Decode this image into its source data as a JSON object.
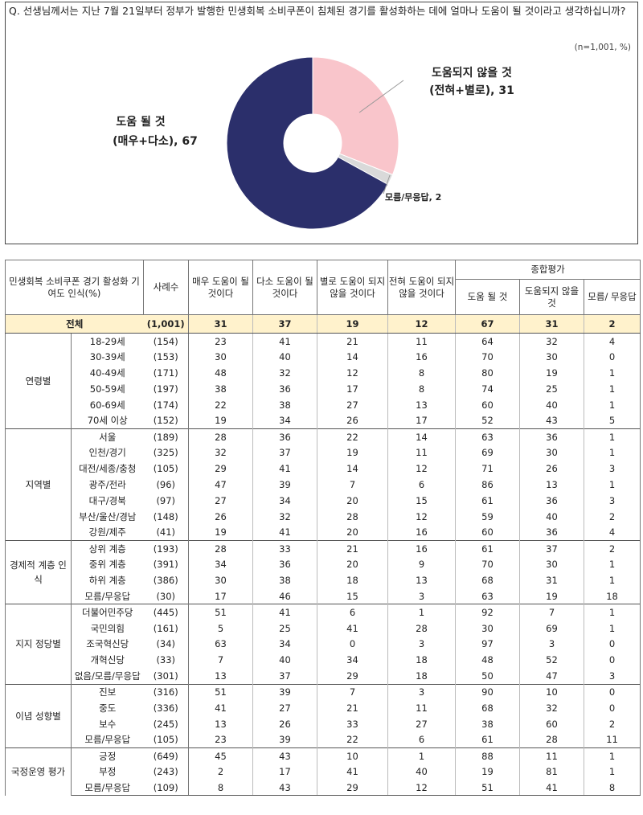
{
  "question": "Q. 선생님께서는 지난 7월 21일부터 정부가 발행한 민생회복 소비쿠폰이 침체된 경기를 활성화하는 데에 얼마나 도움이 될 것이라고 생각하십니까?",
  "n_note": "(n=1,001,  %)",
  "chart_data": {
    "type": "pie",
    "donut": true,
    "slices": [
      {
        "label_line1": "도움되지 않을 것",
        "label_line2": "(전혀+별로), 31",
        "value": 31,
        "color": "#f9c5cb"
      },
      {
        "label_line1": "모름/무응답, 2",
        "label_line2": "",
        "value": 2,
        "color": "#d9d9d9"
      },
      {
        "label_line1": "도움 될 것",
        "label_line2": "(매우+다소), 67",
        "value": 67,
        "color": "#2b2f6b"
      }
    ]
  },
  "table": {
    "header": {
      "category": "민생회복 소비쿠폰 경기 활성화 기여도 인식(%)",
      "count": "사례수",
      "col_very": "매우 도움이 될 것이다",
      "col_some": "다소 도움이 될 것이다",
      "col_notmuch": "별로 도움이 되지 않을 것이다",
      "col_notatall": "전혀 도움이 되지 않을 것이다",
      "summary_group": "종합평가",
      "col_help": "도움 될 것",
      "col_nohelp": "도움되지 않을 것",
      "col_dk": "모름/ 무응답"
    },
    "total": {
      "label": "전체",
      "n": "(1,001)",
      "v": [
        "31",
        "37",
        "19",
        "12",
        "67",
        "31",
        "2"
      ]
    },
    "groups": [
      {
        "name": "연령별",
        "rows": [
          {
            "label": "18-29세",
            "n": "(154)",
            "v": [
              "23",
              "41",
              "21",
              "11",
              "64",
              "32",
              "4"
            ]
          },
          {
            "label": "30-39세",
            "n": "(153)",
            "v": [
              "30",
              "40",
              "14",
              "16",
              "70",
              "30",
              "0"
            ]
          },
          {
            "label": "40-49세",
            "n": "(171)",
            "v": [
              "48",
              "32",
              "12",
              "8",
              "80",
              "19",
              "1"
            ]
          },
          {
            "label": "50-59세",
            "n": "(197)",
            "v": [
              "38",
              "36",
              "17",
              "8",
              "74",
              "25",
              "1"
            ]
          },
          {
            "label": "60-69세",
            "n": "(174)",
            "v": [
              "22",
              "38",
              "27",
              "13",
              "60",
              "40",
              "1"
            ]
          },
          {
            "label": "70세 이상",
            "n": "(152)",
            "v": [
              "19",
              "34",
              "26",
              "17",
              "52",
              "43",
              "5"
            ]
          }
        ]
      },
      {
        "name": "지역별",
        "rows": [
          {
            "label": "서울",
            "n": "(189)",
            "v": [
              "28",
              "36",
              "22",
              "14",
              "63",
              "36",
              "1"
            ]
          },
          {
            "label": "인천/경기",
            "n": "(325)",
            "v": [
              "32",
              "37",
              "19",
              "11",
              "69",
              "30",
              "1"
            ]
          },
          {
            "label": "대전/세종/충청",
            "n": "(105)",
            "v": [
              "29",
              "41",
              "14",
              "12",
              "71",
              "26",
              "3"
            ]
          },
          {
            "label": "광주/전라",
            "n": "(96)",
            "v": [
              "47",
              "39",
              "7",
              "6",
              "86",
              "13",
              "1"
            ]
          },
          {
            "label": "대구/경북",
            "n": "(97)",
            "v": [
              "27",
              "34",
              "20",
              "15",
              "61",
              "36",
              "3"
            ]
          },
          {
            "label": "부산/울산/경남",
            "n": "(148)",
            "v": [
              "26",
              "32",
              "28",
              "12",
              "59",
              "40",
              "2"
            ]
          },
          {
            "label": "강원/제주",
            "n": "(41)",
            "v": [
              "19",
              "41",
              "20",
              "16",
              "60",
              "36",
              "4"
            ]
          }
        ]
      },
      {
        "name": "경제적 계층 인식",
        "rows": [
          {
            "label": "상위 계층",
            "n": "(193)",
            "v": [
              "28",
              "33",
              "21",
              "16",
              "61",
              "37",
              "2"
            ]
          },
          {
            "label": "중위 계층",
            "n": "(391)",
            "v": [
              "34",
              "36",
              "20",
              "9",
              "70",
              "30",
              "1"
            ]
          },
          {
            "label": "하위 계층",
            "n": "(386)",
            "v": [
              "30",
              "38",
              "18",
              "13",
              "68",
              "31",
              "1"
            ]
          },
          {
            "label": "모름/무응답",
            "n": "(30)",
            "v": [
              "17",
              "46",
              "15",
              "3",
              "63",
              "19",
              "18"
            ]
          }
        ]
      },
      {
        "name": "지지 정당별",
        "rows": [
          {
            "label": "더불어민주당",
            "n": "(445)",
            "v": [
              "51",
              "41",
              "6",
              "1",
              "92",
              "7",
              "1"
            ]
          },
          {
            "label": "국민의힘",
            "n": "(161)",
            "v": [
              "5",
              "25",
              "41",
              "28",
              "30",
              "69",
              "1"
            ]
          },
          {
            "label": "조국혁신당",
            "n": "(34)",
            "v": [
              "63",
              "34",
              "0",
              "3",
              "97",
              "3",
              "0"
            ]
          },
          {
            "label": "개혁신당",
            "n": "(33)",
            "v": [
              "7",
              "40",
              "34",
              "18",
              "48",
              "52",
              "0"
            ]
          },
          {
            "label": "없음/모름/무응답",
            "n": "(301)",
            "v": [
              "13",
              "37",
              "29",
              "18",
              "50",
              "47",
              "3"
            ]
          }
        ]
      },
      {
        "name": "이념 성향별",
        "rows": [
          {
            "label": "진보",
            "n": "(316)",
            "v": [
              "51",
              "39",
              "7",
              "3",
              "90",
              "10",
              "0"
            ]
          },
          {
            "label": "중도",
            "n": "(336)",
            "v": [
              "41",
              "27",
              "21",
              "11",
              "68",
              "32",
              "0"
            ]
          },
          {
            "label": "보수",
            "n": "(245)",
            "v": [
              "13",
              "26",
              "33",
              "27",
              "38",
              "60",
              "2"
            ]
          },
          {
            "label": "모름/무응답",
            "n": "(105)",
            "v": [
              "23",
              "39",
              "22",
              "6",
              "61",
              "28",
              "11"
            ]
          }
        ]
      },
      {
        "name": "국정운영 평가",
        "rows": [
          {
            "label": "긍정",
            "n": "(649)",
            "v": [
              "45",
              "43",
              "10",
              "1",
              "88",
              "11",
              "1"
            ]
          },
          {
            "label": "부정",
            "n": "(243)",
            "v": [
              "2",
              "17",
              "41",
              "40",
              "19",
              "81",
              "1"
            ]
          },
          {
            "label": "모름/무응답",
            "n": "(109)",
            "v": [
              "8",
              "43",
              "29",
              "12",
              "51",
              "41",
              "8"
            ]
          }
        ]
      }
    ]
  }
}
